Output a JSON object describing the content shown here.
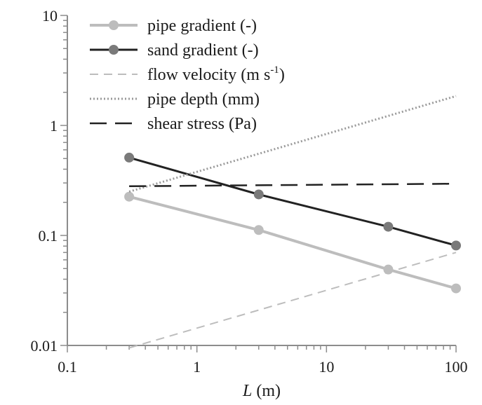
{
  "chart_data": {
    "type": "line",
    "x_scale": "log",
    "y_scale": "log",
    "xlim": [
      0.1,
      100
    ],
    "ylim": [
      0.01,
      10
    ],
    "x_ticks": [
      "0.1",
      "1",
      "10",
      "100"
    ],
    "y_ticks": [
      "0.01",
      "0.1",
      "1",
      "10"
    ],
    "xlabel_var": "L",
    "xlabel_unit": " (m)",
    "legend_position": "top-left",
    "grid": false,
    "series": [
      {
        "name": "pipe gradient (-)",
        "color": "#bdbdbd",
        "style": "solid-markers",
        "x": [
          0.3,
          3,
          30,
          100
        ],
        "y": [
          0.225,
          0.112,
          0.049,
          0.033
        ]
      },
      {
        "name": "sand gradient (-)",
        "color": "#222222",
        "marker_color": "#7a7a7a",
        "style": "solid-markers",
        "x": [
          0.3,
          3,
          30,
          100
        ],
        "y": [
          0.51,
          0.236,
          0.12,
          0.081
        ]
      },
      {
        "name": "flow velocity (m s",
        "name_sup": "-1",
        "name_end": ")",
        "color": "#bdbdbd",
        "style": "dashed",
        "x": [
          0.3,
          100
        ],
        "y": [
          0.0095,
          0.07
        ]
      },
      {
        "name": "pipe depth (mm)",
        "color": "#9a9a9a",
        "style": "dotted",
        "x": [
          0.3,
          100
        ],
        "y": [
          0.25,
          1.85
        ]
      },
      {
        "name": "shear stress (Pa)",
        "color": "#222222",
        "style": "long-dashed",
        "x": [
          0.3,
          100
        ],
        "y": [
          0.28,
          0.295
        ]
      }
    ]
  }
}
